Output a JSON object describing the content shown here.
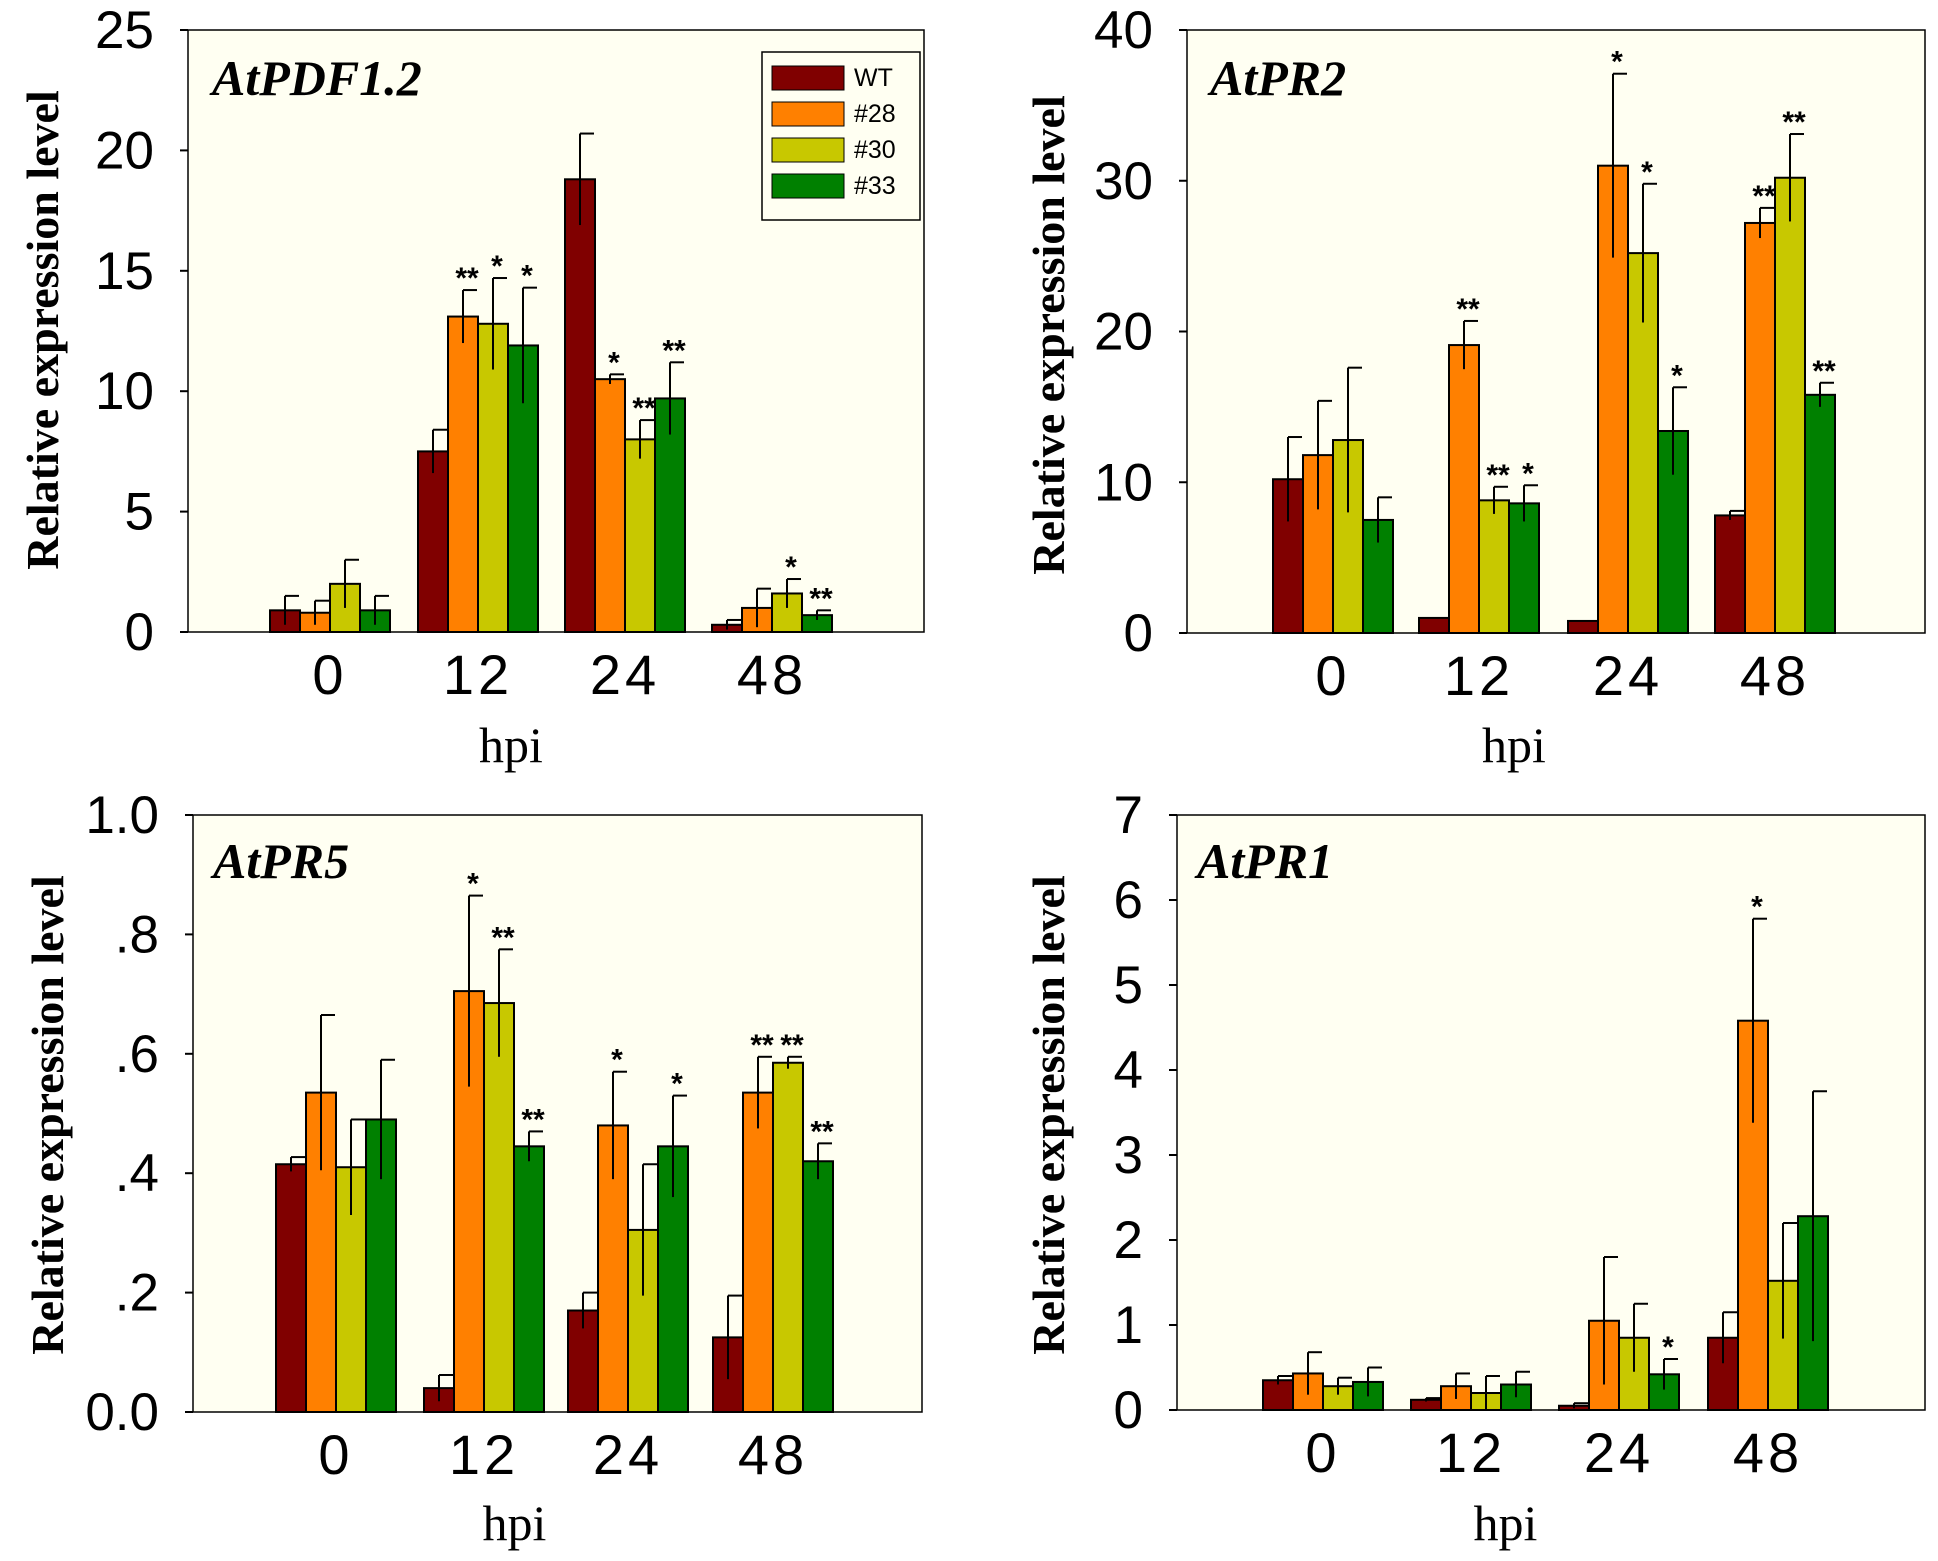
{
  "colors": {
    "WT": "#800000",
    "#28": "#ff8000",
    "#30": "#c8c800",
    "#33": "#008000",
    "panel_bg": "#fffff2"
  },
  "chart_data": [
    {
      "type": "bar",
      "title": "AtPDF1.2",
      "xlabel": "hpi",
      "ylabel": "Relative expression level",
      "categories": [
        "0",
        "12",
        "24",
        "48"
      ],
      "ylim": [
        0,
        25
      ],
      "yticks": [
        0,
        5,
        10,
        15,
        20,
        25
      ],
      "ytick_labels": [
        "0",
        "5",
        "10",
        "15",
        "20",
        "25"
      ],
      "legend": {
        "position": "top-right",
        "entries": [
          "WT",
          "#28",
          "#30",
          "#33"
        ]
      },
      "series": [
        {
          "name": "WT",
          "values": [
            0.9,
            7.5,
            18.8,
            0.3
          ],
          "errors": [
            0.6,
            0.9,
            1.9,
            0.2
          ],
          "sig": [
            "",
            "",
            "",
            ""
          ]
        },
        {
          "name": "#28",
          "values": [
            0.8,
            13.1,
            10.5,
            1.0
          ],
          "errors": [
            0.5,
            1.1,
            0.2,
            0.8
          ],
          "sig": [
            "",
            "**",
            "*",
            ""
          ]
        },
        {
          "name": "#30",
          "values": [
            2.0,
            12.8,
            8.0,
            1.6
          ],
          "errors": [
            1.0,
            1.9,
            0.8,
            0.6
          ],
          "sig": [
            "",
            "*",
            "**",
            "*"
          ]
        },
        {
          "name": "#33",
          "values": [
            0.9,
            11.9,
            9.7,
            0.7
          ],
          "errors": [
            0.6,
            2.4,
            1.5,
            0.2
          ],
          "sig": [
            "",
            "*",
            "**",
            "**"
          ]
        }
      ]
    },
    {
      "type": "bar",
      "title": "AtPR2",
      "xlabel": "hpi",
      "ylabel": "Relative expression level",
      "categories": [
        "0",
        "12",
        "24",
        "48"
      ],
      "ylim": [
        0,
        40
      ],
      "yticks": [
        0,
        10,
        20,
        30,
        40
      ],
      "ytick_labels": [
        "0",
        "10",
        "20",
        "30",
        "40"
      ],
      "series": [
        {
          "name": "WT",
          "values": [
            10.2,
            1.0,
            0.8,
            7.8
          ],
          "errors": [
            2.8,
            0,
            0,
            0.3
          ],
          "sig": [
            "",
            "",
            "",
            ""
          ]
        },
        {
          "name": "#28",
          "values": [
            11.8,
            19.1,
            31.0,
            27.2
          ],
          "errors": [
            3.6,
            1.6,
            6.1,
            1.0
          ],
          "sig": [
            "",
            "**",
            "*",
            "**"
          ]
        },
        {
          "name": "#30",
          "values": [
            12.8,
            8.8,
            25.2,
            30.2
          ],
          "errors": [
            4.8,
            0.9,
            4.6,
            2.9
          ],
          "sig": [
            "",
            "**",
            "*",
            "**"
          ]
        },
        {
          "name": "#33",
          "values": [
            7.5,
            8.6,
            13.4,
            15.8
          ],
          "errors": [
            1.5,
            1.2,
            2.9,
            0.8
          ],
          "sig": [
            "",
            "*",
            "*",
            "**"
          ]
        }
      ]
    },
    {
      "type": "bar",
      "title": "AtPR5",
      "xlabel": "hpi",
      "ylabel": "Relative expression level",
      "categories": [
        "0",
        "12",
        "24",
        "48"
      ],
      "ylim": [
        0,
        1.0
      ],
      "yticks": [
        0,
        0.2,
        0.4,
        0.6,
        0.8,
        1.0
      ],
      "ytick_labels": [
        "0.0",
        ".2",
        ".4",
        ".6",
        ".8",
        "1.0"
      ],
      "series": [
        {
          "name": "WT",
          "values": [
            0.415,
            0.04,
            0.17,
            0.125
          ],
          "errors": [
            0.012,
            0.022,
            0.03,
            0.07
          ],
          "sig": [
            "",
            "",
            "",
            ""
          ]
        },
        {
          "name": "#28",
          "values": [
            0.535,
            0.705,
            0.48,
            0.535
          ],
          "errors": [
            0.13,
            0.16,
            0.09,
            0.06
          ],
          "sig": [
            "",
            "*",
            "*",
            "**"
          ]
        },
        {
          "name": "#30",
          "values": [
            0.41,
            0.685,
            0.305,
            0.585
          ],
          "errors": [
            0.08,
            0.09,
            0.11,
            0.01
          ],
          "sig": [
            "",
            "**",
            "",
            "**"
          ]
        },
        {
          "name": "#33",
          "values": [
            0.49,
            0.445,
            0.445,
            0.42
          ],
          "errors": [
            0.1,
            0.025,
            0.085,
            0.03
          ],
          "sig": [
            "",
            "**",
            "*",
            "**"
          ]
        }
      ]
    },
    {
      "type": "bar",
      "title": "AtPR1",
      "xlabel": "hpi",
      "ylabel": "Relative expression level",
      "categories": [
        "0",
        "12",
        "24",
        "48"
      ],
      "ylim": [
        0,
        7
      ],
      "yticks": [
        0,
        1,
        2,
        3,
        4,
        5,
        6,
        7
      ],
      "ytick_labels": [
        "0",
        "1",
        "2",
        "3",
        "4",
        "5",
        "6",
        "7"
      ],
      "series": [
        {
          "name": "WT",
          "values": [
            0.35,
            0.12,
            0.05,
            0.85
          ],
          "errors": [
            0.05,
            0.02,
            0.03,
            0.3
          ],
          "sig": [
            "",
            "",
            "",
            ""
          ]
        },
        {
          "name": "#28",
          "values": [
            0.43,
            0.28,
            1.05,
            4.58
          ],
          "errors": [
            0.25,
            0.15,
            0.75,
            1.2
          ],
          "sig": [
            "",
            "",
            "",
            "*"
          ]
        },
        {
          "name": "#30",
          "values": [
            0.28,
            0.2,
            0.85,
            1.52
          ],
          "errors": [
            0.1,
            0.2,
            0.4,
            0.68
          ],
          "sig": [
            "",
            "",
            "",
            ""
          ]
        },
        {
          "name": "#33",
          "values": [
            0.33,
            0.3,
            0.42,
            2.28
          ],
          "errors": [
            0.17,
            0.15,
            0.18,
            1.47
          ],
          "sig": [
            "",
            "",
            "*",
            ""
          ]
        }
      ]
    }
  ]
}
